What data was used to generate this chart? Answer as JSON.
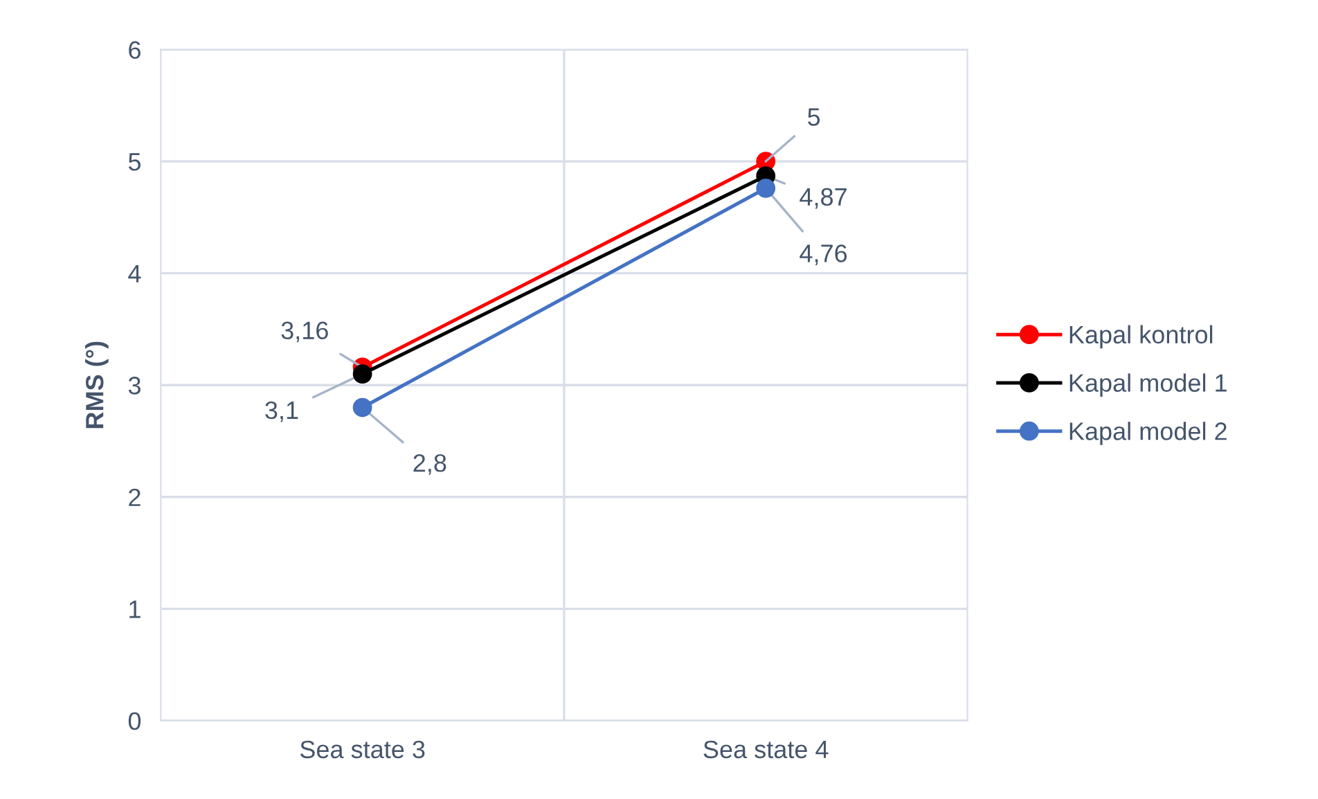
{
  "chart_data": {
    "type": "line",
    "ylabel": "RMS (°)",
    "categories": [
      "Sea state 3",
      "Sea state 4"
    ],
    "series": [
      {
        "name": "Kapal kontrol",
        "color": "#ff0000",
        "values": [
          3.16,
          5
        ],
        "value_labels": [
          "3,16",
          "5"
        ]
      },
      {
        "name": "Kapal model 1",
        "color": "#000000",
        "values": [
          3.1,
          4.87
        ],
        "value_labels": [
          "3,1",
          "4,87"
        ]
      },
      {
        "name": "Kapal model 2",
        "color": "#4472c4",
        "values": [
          2.8,
          4.76
        ],
        "value_labels": [
          "2,8",
          "4,76"
        ]
      }
    ],
    "ylim": [
      0,
      6
    ],
    "yticks": [
      0,
      1,
      2,
      3,
      4,
      5,
      6
    ],
    "grid": true,
    "legend": "right",
    "marker": "circle",
    "line_style": "solid"
  }
}
